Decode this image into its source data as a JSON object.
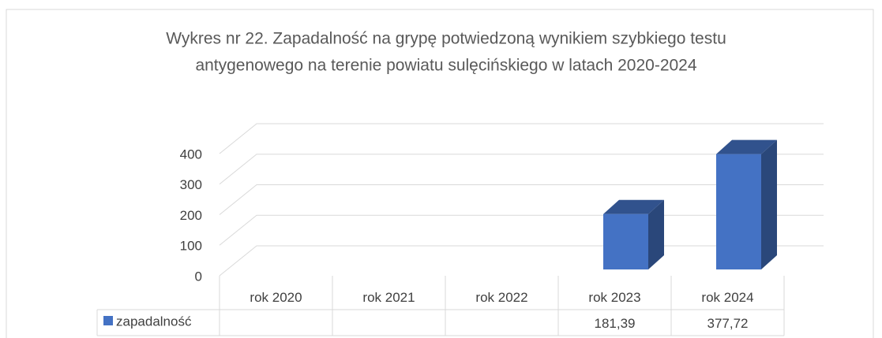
{
  "chart_data": {
    "type": "bar3d",
    "title": [
      "Wykres nr 22. Zapadalność na grypę potwiedzoną wynikiem szybkiego testu",
      "antygenowego na terenie powiatu sulęcińskiego w latach 2020-2024"
    ],
    "categories": [
      "rok 2020",
      "rok 2021",
      "rok 2022",
      "rok 2023",
      "rok 2024"
    ],
    "series": [
      {
        "name": "zapadalność",
        "color": "#4472c4",
        "values": [
          null,
          null,
          null,
          181.39,
          377.72
        ],
        "value_labels": [
          null,
          null,
          null,
          "181,39",
          "377,72"
        ]
      }
    ],
    "ylim": [
      0,
      400
    ],
    "yticks": [
      0,
      100,
      200,
      300,
      400
    ],
    "grid": true,
    "data_table": true
  }
}
